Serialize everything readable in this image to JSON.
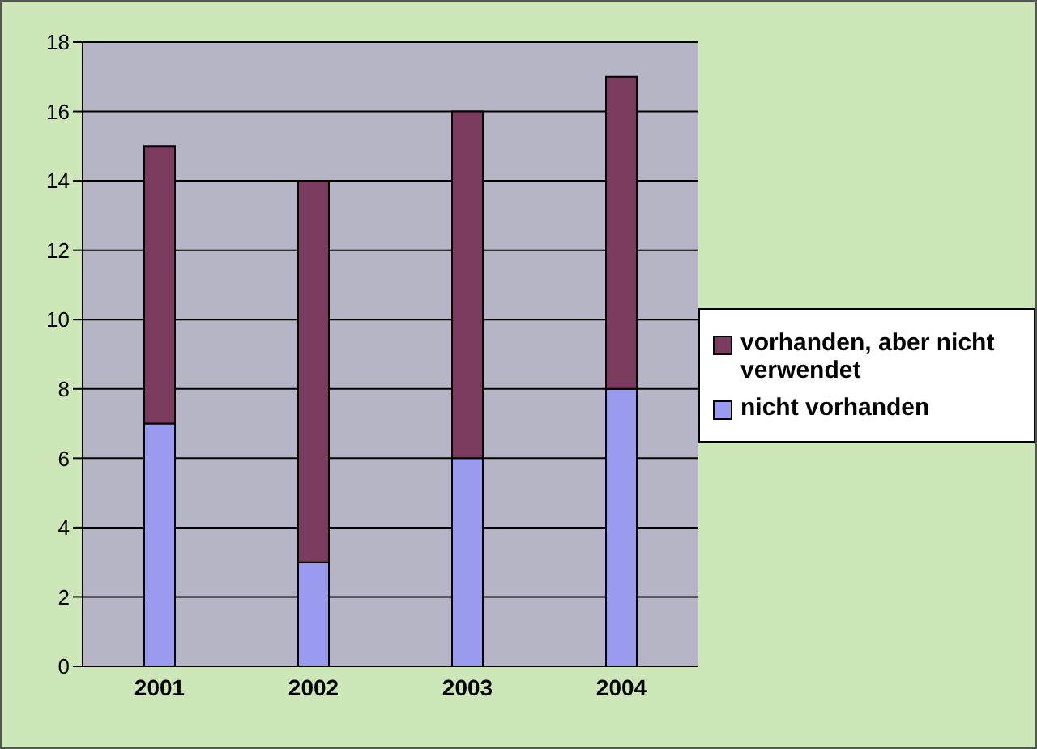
{
  "chart_data": {
    "type": "bar",
    "stacked": true,
    "categories": [
      "2001",
      "2002",
      "2003",
      "2004"
    ],
    "series": [
      {
        "name": "nicht vorhanden",
        "color": "#9a9aee",
        "values": [
          7,
          3,
          6,
          8
        ]
      },
      {
        "name": "vorhanden, aber nicht verwendet",
        "color": "#7b3b5e",
        "values": [
          8,
          11,
          10,
          9
        ]
      }
    ],
    "ylim": [
      0,
      18
    ],
    "yticks": [
      0,
      2,
      4,
      6,
      8,
      10,
      12,
      14,
      16,
      18
    ],
    "grid": "y",
    "legend": "right"
  }
}
